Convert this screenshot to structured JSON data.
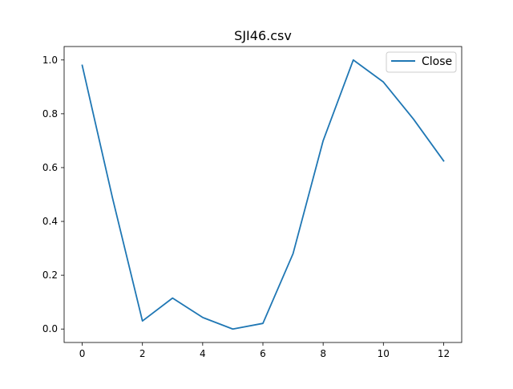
{
  "chart_data": {
    "type": "line",
    "title": "SJI46.csv",
    "xlabel": "",
    "ylabel": "",
    "x": [
      0,
      1,
      2,
      3,
      4,
      5,
      6,
      7,
      8,
      9,
      10,
      11,
      12
    ],
    "series": [
      {
        "name": "Close",
        "color": "#1f77b4",
        "values": [
          0.98,
          0.49,
          0.03,
          0.115,
          0.043,
          0.0,
          0.021,
          0.28,
          0.7,
          1.0,
          0.918,
          0.78,
          0.625
        ]
      }
    ],
    "xlim": [
      -0.6,
      12.6
    ],
    "ylim": [
      -0.05,
      1.05
    ],
    "xticks": [
      0,
      2,
      4,
      6,
      8,
      10,
      12
    ],
    "xtick_labels": [
      "0",
      "2",
      "4",
      "6",
      "8",
      "10",
      "12"
    ],
    "yticks": [
      0.0,
      0.2,
      0.4,
      0.6,
      0.8,
      1.0
    ],
    "ytick_labels": [
      "0.0",
      "0.2",
      "0.4",
      "0.6",
      "0.8",
      "1.0"
    ],
    "grid": false,
    "legend": "upper right"
  }
}
